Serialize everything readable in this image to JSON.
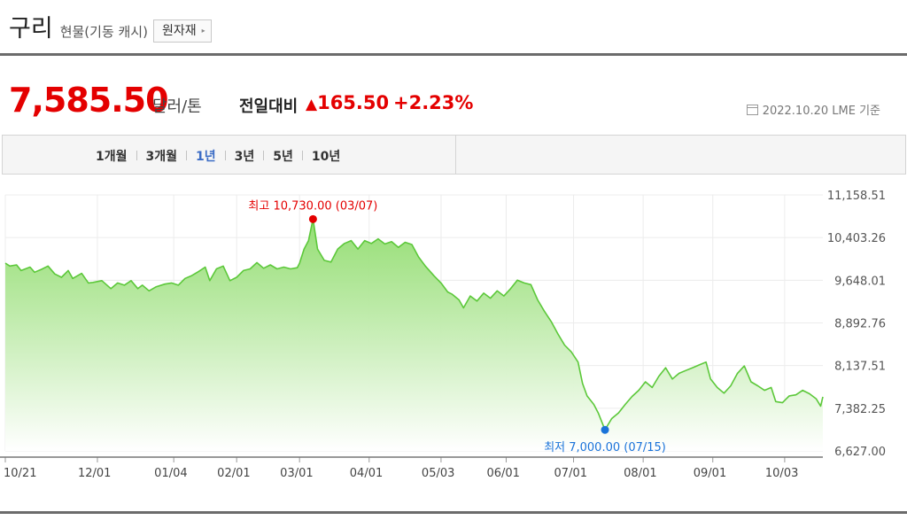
{
  "header": {
    "title": "구리",
    "subtitle": "현물(기동 캐시)",
    "raw_button": "원자재",
    "raw_arrow": "▸"
  },
  "price": {
    "value": "7,585.50",
    "unit": "달러/톤",
    "change_label": "전일대비",
    "change_arrow": "▲",
    "change": "165.50",
    "change_pct": "+2.23%",
    "date": "2022.10.20 LME 기준"
  },
  "periods": {
    "tabs": [
      "1개월",
      "3개월",
      "1년",
      "3년",
      "5년",
      "10년"
    ],
    "selected_index": 2
  },
  "colors": {
    "price_red": "#e40000",
    "line": "#5cc83a",
    "fill_top": "#8fdc6c",
    "fill_bottom": "#ffffff",
    "high_marker": "#e40000",
    "low_marker": "#1a73d9",
    "selected_tab": "#3b6cc5"
  },
  "chart_data": {
    "type": "area",
    "title": "",
    "xlabel": "",
    "ylabel": "",
    "y_ticks": [
      11158.51,
      10403.26,
      9648.01,
      8892.76,
      8137.51,
      7382.25,
      6627.0
    ],
    "y_tick_labels": [
      "11,158.51",
      "10,403.26",
      "9,648.01",
      "8,892.76",
      "8,137.51",
      "7,382.25",
      "6,627.00"
    ],
    "ylim": [
      6627.0,
      11158.51
    ],
    "x_tick_labels": [
      "10/21",
      "12/01",
      "01/04",
      "02/01",
      "03/01",
      "04/01",
      "05/03",
      "06/01",
      "07/01",
      "08/01",
      "09/01",
      "10/03"
    ],
    "x_tick_dates": [
      "2021-10-21",
      "2021-12-01",
      "2022-01-04",
      "2022-02-01",
      "2022-03-01",
      "2022-04-01",
      "2022-05-03",
      "2022-06-01",
      "2022-07-01",
      "2022-08-01",
      "2022-09-01",
      "2022-10-03"
    ],
    "grid": true,
    "series": [
      {
        "values": [
          [
            "2021-10-21",
            9950
          ],
          [
            "2021-10-23",
            9900
          ],
          [
            "2021-10-26",
            9920
          ],
          [
            "2021-10-28",
            9820
          ],
          [
            "2021-11-01",
            9880
          ],
          [
            "2021-11-03",
            9790
          ],
          [
            "2021-11-06",
            9840
          ],
          [
            "2021-11-09",
            9900
          ],
          [
            "2021-11-12",
            9760
          ],
          [
            "2021-11-15",
            9700
          ],
          [
            "2021-11-18",
            9820
          ],
          [
            "2021-11-20",
            9680
          ],
          [
            "2021-11-24",
            9770
          ],
          [
            "2021-11-27",
            9600
          ],
          [
            "2021-11-29",
            9610
          ],
          [
            "2021-12-03",
            9640
          ],
          [
            "2021-12-07",
            9500
          ],
          [
            "2021-12-10",
            9600
          ],
          [
            "2021-12-13",
            9560
          ],
          [
            "2021-12-16",
            9640
          ],
          [
            "2021-12-19",
            9500
          ],
          [
            "2021-12-21",
            9560
          ],
          [
            "2021-12-24",
            9460
          ],
          [
            "2021-12-27",
            9530
          ],
          [
            "2021-12-31",
            9580
          ],
          [
            "2022-01-03",
            9600
          ],
          [
            "2022-01-06",
            9560
          ],
          [
            "2022-01-09",
            9680
          ],
          [
            "2022-01-12",
            9730
          ],
          [
            "2022-01-15",
            9800
          ],
          [
            "2022-01-18",
            9880
          ],
          [
            "2022-01-20",
            9640
          ],
          [
            "2022-01-23",
            9850
          ],
          [
            "2022-01-26",
            9900
          ],
          [
            "2022-01-29",
            9640
          ],
          [
            "2022-02-01",
            9700
          ],
          [
            "2022-02-04",
            9820
          ],
          [
            "2022-02-07",
            9850
          ],
          [
            "2022-02-10",
            9960
          ],
          [
            "2022-02-13",
            9860
          ],
          [
            "2022-02-16",
            9920
          ],
          [
            "2022-02-19",
            9850
          ],
          [
            "2022-02-22",
            9880
          ],
          [
            "2022-02-25",
            9850
          ],
          [
            "2022-02-28",
            9870
          ],
          [
            "2022-03-01",
            9950
          ],
          [
            "2022-03-03",
            10200
          ],
          [
            "2022-03-05",
            10350
          ],
          [
            "2022-03-07",
            10730
          ],
          [
            "2022-03-09",
            10200
          ],
          [
            "2022-03-12",
            10000
          ],
          [
            "2022-03-15",
            9970
          ],
          [
            "2022-03-18",
            10200
          ],
          [
            "2022-03-21",
            10300
          ],
          [
            "2022-03-24",
            10350
          ],
          [
            "2022-03-27",
            10200
          ],
          [
            "2022-03-30",
            10350
          ],
          [
            "2022-04-02",
            10300
          ],
          [
            "2022-04-05",
            10380
          ],
          [
            "2022-04-08",
            10290
          ],
          [
            "2022-04-11",
            10330
          ],
          [
            "2022-04-14",
            10230
          ],
          [
            "2022-04-17",
            10320
          ],
          [
            "2022-04-20",
            10280
          ],
          [
            "2022-04-23",
            10060
          ],
          [
            "2022-04-26",
            9900
          ],
          [
            "2022-04-30",
            9720
          ],
          [
            "2022-05-03",
            9600
          ],
          [
            "2022-05-06",
            9440
          ],
          [
            "2022-05-08",
            9400
          ],
          [
            "2022-05-11",
            9300
          ],
          [
            "2022-05-13",
            9160
          ],
          [
            "2022-05-16",
            9370
          ],
          [
            "2022-05-19",
            9280
          ],
          [
            "2022-05-22",
            9420
          ],
          [
            "2022-05-25",
            9330
          ],
          [
            "2022-05-28",
            9460
          ],
          [
            "2022-05-31",
            9370
          ],
          [
            "2022-06-03",
            9500
          ],
          [
            "2022-06-06",
            9650
          ],
          [
            "2022-06-09",
            9600
          ],
          [
            "2022-06-12",
            9570
          ],
          [
            "2022-06-15",
            9300
          ],
          [
            "2022-06-18",
            9100
          ],
          [
            "2022-06-21",
            8920
          ],
          [
            "2022-06-24",
            8700
          ],
          [
            "2022-06-27",
            8500
          ],
          [
            "2022-06-30",
            8380
          ],
          [
            "2022-07-03",
            8200
          ],
          [
            "2022-07-05",
            7820
          ],
          [
            "2022-07-07",
            7600
          ],
          [
            "2022-07-10",
            7450
          ],
          [
            "2022-07-12",
            7300
          ],
          [
            "2022-07-15",
            7000
          ],
          [
            "2022-07-18",
            7200
          ],
          [
            "2022-07-21",
            7300
          ],
          [
            "2022-07-24",
            7450
          ],
          [
            "2022-07-27",
            7590
          ],
          [
            "2022-07-30",
            7700
          ],
          [
            "2022-08-02",
            7850
          ],
          [
            "2022-08-05",
            7750
          ],
          [
            "2022-08-08",
            7950
          ],
          [
            "2022-08-11",
            8100
          ],
          [
            "2022-08-14",
            7900
          ],
          [
            "2022-08-17",
            8000
          ],
          [
            "2022-08-20",
            8050
          ],
          [
            "2022-08-23",
            8100
          ],
          [
            "2022-08-26",
            8150
          ],
          [
            "2022-08-29",
            8200
          ],
          [
            "2022-08-31",
            7900
          ],
          [
            "2022-09-03",
            7750
          ],
          [
            "2022-09-06",
            7650
          ],
          [
            "2022-09-09",
            7780
          ],
          [
            "2022-09-12",
            8000
          ],
          [
            "2022-09-15",
            8130
          ],
          [
            "2022-09-18",
            7850
          ],
          [
            "2022-09-21",
            7780
          ],
          [
            "2022-09-24",
            7700
          ],
          [
            "2022-09-27",
            7750
          ],
          [
            "2022-09-29",
            7500
          ],
          [
            "2022-10-02",
            7480
          ],
          [
            "2022-10-05",
            7600
          ],
          [
            "2022-10-08",
            7620
          ],
          [
            "2022-10-11",
            7700
          ],
          [
            "2022-10-14",
            7640
          ],
          [
            "2022-10-17",
            7550
          ],
          [
            "2022-10-19",
            7420
          ],
          [
            "2022-10-20",
            7585.5
          ]
        ]
      }
    ],
    "annotations": {
      "high": {
        "date": "2022-03-07",
        "value": 10730,
        "label": "최고 10,730.00 (03/07)"
      },
      "low": {
        "date": "2022-07-15",
        "value": 7000,
        "label": "최저 7,000.00 (07/15)"
      }
    }
  }
}
